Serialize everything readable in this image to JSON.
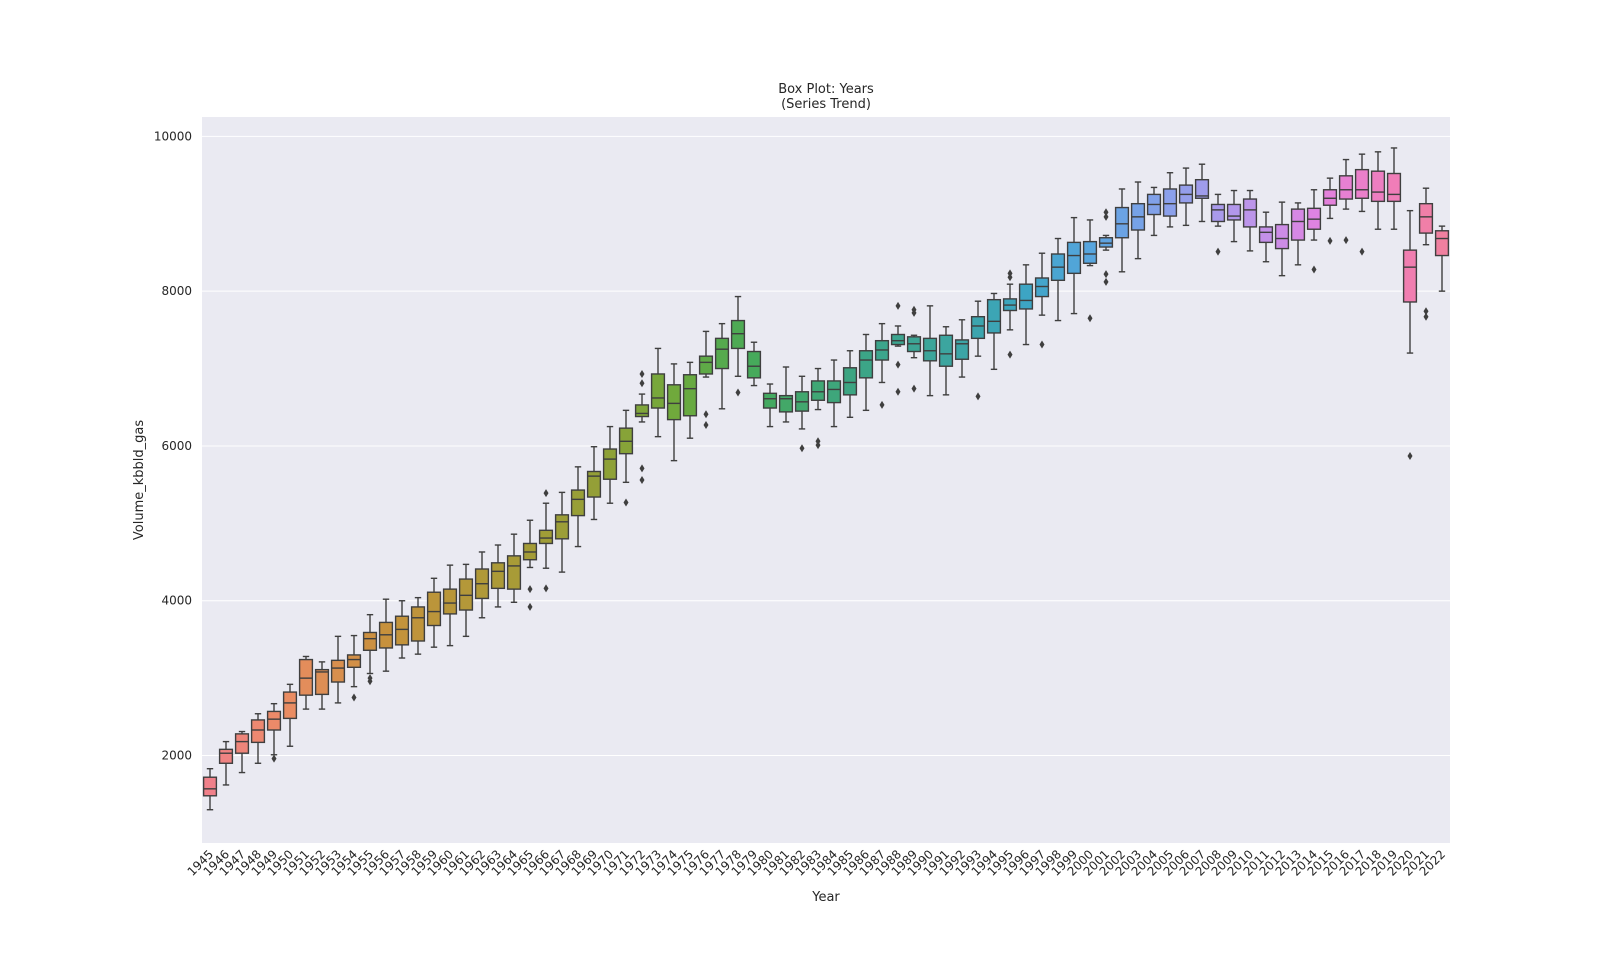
{
  "chart_data": {
    "type": "box",
    "title": "Box Plot: Years",
    "subtitle": "(Series Trend)",
    "xlabel": "Year",
    "ylabel": "Volume_kbbld_gas",
    "ylim": [
      870,
      10250
    ],
    "yticks": [
      2000,
      4000,
      6000,
      8000,
      10000
    ],
    "grid": true,
    "background_color": "#EAEAF2",
    "categories": [
      "1945",
      "1946",
      "1947",
      "1948",
      "1949",
      "1950",
      "1951",
      "1952",
      "1953",
      "1954",
      "1955",
      "1956",
      "1957",
      "1958",
      "1959",
      "1960",
      "1961",
      "1962",
      "1963",
      "1964",
      "1965",
      "1966",
      "1967",
      "1968",
      "1969",
      "1970",
      "1971",
      "1972",
      "1973",
      "1974",
      "1975",
      "1976",
      "1977",
      "1978",
      "1979",
      "1980",
      "1981",
      "1982",
      "1983",
      "1984",
      "1985",
      "1986",
      "1987",
      "1988",
      "1989",
      "1990",
      "1991",
      "1992",
      "1993",
      "1994",
      "1995",
      "1996",
      "1997",
      "1998",
      "1999",
      "2000",
      "2001",
      "2002",
      "2003",
      "2004",
      "2005",
      "2006",
      "2007",
      "2008",
      "2009",
      "2010",
      "2011",
      "2012",
      "2013",
      "2014",
      "2015",
      "2016",
      "2017",
      "2018",
      "2019",
      "2020",
      "2021",
      "2022"
    ],
    "boxes": [
      {
        "year": "1945",
        "lo": 1300,
        "q1": 1480,
        "med": 1570,
        "q3": 1720,
        "hi": 1830,
        "out": []
      },
      {
        "year": "1946",
        "lo": 1620,
        "q1": 1900,
        "med": 2030,
        "q3": 2080,
        "hi": 2180,
        "out": []
      },
      {
        "year": "1947",
        "lo": 1780,
        "q1": 2030,
        "med": 2180,
        "q3": 2280,
        "hi": 2310,
        "out": []
      },
      {
        "year": "1948",
        "lo": 1900,
        "q1": 2170,
        "med": 2330,
        "q3": 2460,
        "hi": 2540,
        "out": []
      },
      {
        "year": "1949",
        "lo": 2010,
        "q1": 2330,
        "med": 2470,
        "q3": 2570,
        "hi": 2670,
        "out": [
          1960
        ]
      },
      {
        "year": "1950",
        "lo": 2120,
        "q1": 2480,
        "med": 2680,
        "q3": 2820,
        "hi": 2920,
        "out": []
      },
      {
        "year": "1951",
        "lo": 2600,
        "q1": 2780,
        "med": 3000,
        "q3": 3240,
        "hi": 3280,
        "out": []
      },
      {
        "year": "1952",
        "lo": 2600,
        "q1": 2790,
        "med": 3080,
        "q3": 3110,
        "hi": 3210,
        "out": []
      },
      {
        "year": "1953",
        "lo": 2680,
        "q1": 2950,
        "med": 3130,
        "q3": 3230,
        "hi": 3540,
        "out": []
      },
      {
        "year": "1954",
        "lo": 2890,
        "q1": 3140,
        "med": 3240,
        "q3": 3300,
        "hi": 3550,
        "out": [
          2750
        ]
      },
      {
        "year": "1955",
        "lo": 3060,
        "q1": 3360,
        "med": 3510,
        "q3": 3590,
        "hi": 3820,
        "out": [
          2960,
          3000
        ]
      },
      {
        "year": "1956",
        "lo": 3090,
        "q1": 3390,
        "med": 3560,
        "q3": 3720,
        "hi": 4020,
        "out": []
      },
      {
        "year": "1957",
        "lo": 3260,
        "q1": 3430,
        "med": 3630,
        "q3": 3800,
        "hi": 4000,
        "out": []
      },
      {
        "year": "1958",
        "lo": 3310,
        "q1": 3480,
        "med": 3780,
        "q3": 3920,
        "hi": 4040,
        "out": []
      },
      {
        "year": "1959",
        "lo": 3400,
        "q1": 3680,
        "med": 3860,
        "q3": 4110,
        "hi": 4290,
        "out": []
      },
      {
        "year": "1960",
        "lo": 3420,
        "q1": 3830,
        "med": 3970,
        "q3": 4150,
        "hi": 4460,
        "out": []
      },
      {
        "year": "1961",
        "lo": 3540,
        "q1": 3880,
        "med": 4070,
        "q3": 4280,
        "hi": 4470,
        "out": []
      },
      {
        "year": "1962",
        "lo": 3780,
        "q1": 4030,
        "med": 4220,
        "q3": 4410,
        "hi": 4630,
        "out": []
      },
      {
        "year": "1963",
        "lo": 3920,
        "q1": 4160,
        "med": 4380,
        "q3": 4490,
        "hi": 4720,
        "out": []
      },
      {
        "year": "1964",
        "lo": 3980,
        "q1": 4150,
        "med": 4450,
        "q3": 4580,
        "hi": 4860,
        "out": []
      },
      {
        "year": "1965",
        "lo": 4430,
        "q1": 4530,
        "med": 4630,
        "q3": 4740,
        "hi": 5040,
        "out": [
          4150,
          3920
        ]
      },
      {
        "year": "1966",
        "lo": 4420,
        "q1": 4740,
        "med": 4810,
        "q3": 4910,
        "hi": 5260,
        "out": [
          5390,
          4160
        ]
      },
      {
        "year": "1967",
        "lo": 4370,
        "q1": 4800,
        "med": 5020,
        "q3": 5110,
        "hi": 5400,
        "out": []
      },
      {
        "year": "1968",
        "lo": 4700,
        "q1": 5100,
        "med": 5310,
        "q3": 5430,
        "hi": 5730,
        "out": []
      },
      {
        "year": "1969",
        "lo": 5050,
        "q1": 5340,
        "med": 5610,
        "q3": 5670,
        "hi": 5990,
        "out": []
      },
      {
        "year": "1970",
        "lo": 5260,
        "q1": 5570,
        "med": 5830,
        "q3": 5960,
        "hi": 6250,
        "out": []
      },
      {
        "year": "1971",
        "lo": 5530,
        "q1": 5900,
        "med": 6060,
        "q3": 6230,
        "hi": 6460,
        "out": [
          5270
        ]
      },
      {
        "year": "1972",
        "lo": 6310,
        "q1": 6380,
        "med": 6420,
        "q3": 6530,
        "hi": 6670,
        "out": [
          6810,
          6930,
          5710,
          5560
        ]
      },
      {
        "year": "1973",
        "lo": 6120,
        "q1": 6490,
        "med": 6620,
        "q3": 6930,
        "hi": 7260,
        "out": []
      },
      {
        "year": "1974",
        "lo": 5810,
        "q1": 6340,
        "med": 6550,
        "q3": 6790,
        "hi": 7060,
        "out": []
      },
      {
        "year": "1975",
        "lo": 6100,
        "q1": 6390,
        "med": 6740,
        "q3": 6920,
        "hi": 7080,
        "out": []
      },
      {
        "year": "1976",
        "lo": 6890,
        "q1": 6930,
        "med": 7080,
        "q3": 7160,
        "hi": 7480,
        "out": [
          6410,
          6270
        ]
      },
      {
        "year": "1977",
        "lo": 6480,
        "q1": 7000,
        "med": 7250,
        "q3": 7390,
        "hi": 7580,
        "out": []
      },
      {
        "year": "1978",
        "lo": 6900,
        "q1": 7260,
        "med": 7450,
        "q3": 7620,
        "hi": 7930,
        "out": [
          6690
        ]
      },
      {
        "year": "1979",
        "lo": 6780,
        "q1": 6880,
        "med": 7030,
        "q3": 7220,
        "hi": 7340,
        "out": []
      },
      {
        "year": "1980",
        "lo": 6250,
        "q1": 6490,
        "med": 6610,
        "q3": 6680,
        "hi": 6800,
        "out": []
      },
      {
        "year": "1981",
        "lo": 6310,
        "q1": 6440,
        "med": 6610,
        "q3": 6650,
        "hi": 7020,
        "out": []
      },
      {
        "year": "1982",
        "lo": 6220,
        "q1": 6450,
        "med": 6570,
        "q3": 6700,
        "hi": 6900,
        "out": [
          5970
        ]
      },
      {
        "year": "1983",
        "lo": 6470,
        "q1": 6590,
        "med": 6700,
        "q3": 6840,
        "hi": 7000,
        "out": [
          6010,
          6060
        ]
      },
      {
        "year": "1984",
        "lo": 6250,
        "q1": 6560,
        "med": 6730,
        "q3": 6840,
        "hi": 7110,
        "out": []
      },
      {
        "year": "1985",
        "lo": 6370,
        "q1": 6660,
        "med": 6820,
        "q3": 7010,
        "hi": 7230,
        "out": []
      },
      {
        "year": "1986",
        "lo": 6460,
        "q1": 6880,
        "med": 7110,
        "q3": 7230,
        "hi": 7440,
        "out": []
      },
      {
        "year": "1987",
        "lo": 6820,
        "q1": 7110,
        "med": 7240,
        "q3": 7360,
        "hi": 7580,
        "out": [
          6530
        ]
      },
      {
        "year": "1988",
        "lo": 7290,
        "q1": 7310,
        "med": 7360,
        "q3": 7440,
        "hi": 7550,
        "out": [
          7810,
          7050,
          6700
        ]
      },
      {
        "year": "1989",
        "lo": 7140,
        "q1": 7220,
        "med": 7320,
        "q3": 7410,
        "hi": 7430,
        "out": [
          7760,
          7720,
          6740
        ]
      },
      {
        "year": "1990",
        "lo": 6650,
        "q1": 7100,
        "med": 7230,
        "q3": 7390,
        "hi": 7810,
        "out": []
      },
      {
        "year": "1991",
        "lo": 6660,
        "q1": 7030,
        "med": 7190,
        "q3": 7430,
        "hi": 7540,
        "out": []
      },
      {
        "year": "1992",
        "lo": 6890,
        "q1": 7120,
        "med": 7320,
        "q3": 7370,
        "hi": 7630,
        "out": []
      },
      {
        "year": "1993",
        "lo": 7160,
        "q1": 7390,
        "med": 7550,
        "q3": 7670,
        "hi": 7870,
        "out": [
          6640
        ]
      },
      {
        "year": "1994",
        "lo": 6990,
        "q1": 7460,
        "med": 7610,
        "q3": 7890,
        "hi": 7970,
        "out": []
      },
      {
        "year": "1995",
        "lo": 7500,
        "q1": 7750,
        "med": 7820,
        "q3": 7900,
        "hi": 8090,
        "out": [
          8180,
          8230,
          7180
        ]
      },
      {
        "year": "1996",
        "lo": 7310,
        "q1": 7770,
        "med": 7880,
        "q3": 8090,
        "hi": 8340,
        "out": []
      },
      {
        "year": "1997",
        "lo": 7690,
        "q1": 7930,
        "med": 8060,
        "q3": 8170,
        "hi": 8490,
        "out": [
          7310
        ]
      },
      {
        "year": "1998",
        "lo": 7620,
        "q1": 8140,
        "med": 8310,
        "q3": 8480,
        "hi": 8680,
        "out": []
      },
      {
        "year": "1999",
        "lo": 7710,
        "q1": 8230,
        "med": 8460,
        "q3": 8630,
        "hi": 8950,
        "out": []
      },
      {
        "year": "2000",
        "lo": 8330,
        "q1": 8360,
        "med": 8480,
        "q3": 8640,
        "hi": 8920,
        "out": [
          7650
        ]
      },
      {
        "year": "2001",
        "lo": 8530,
        "q1": 8570,
        "med": 8620,
        "q3": 8690,
        "hi": 8720,
        "out": [
          8960,
          9020,
          8220,
          8120
        ]
      },
      {
        "year": "2002",
        "lo": 8250,
        "q1": 8690,
        "med": 8870,
        "q3": 9080,
        "hi": 9320,
        "out": []
      },
      {
        "year": "2003",
        "lo": 8420,
        "q1": 8790,
        "med": 8960,
        "q3": 9130,
        "hi": 9410,
        "out": []
      },
      {
        "year": "2004",
        "lo": 8720,
        "q1": 8990,
        "med": 9120,
        "q3": 9250,
        "hi": 9340,
        "out": []
      },
      {
        "year": "2005",
        "lo": 8830,
        "q1": 8970,
        "med": 9130,
        "q3": 9320,
        "hi": 9530,
        "out": []
      },
      {
        "year": "2006",
        "lo": 8850,
        "q1": 9140,
        "med": 9250,
        "q3": 9370,
        "hi": 9590,
        "out": []
      },
      {
        "year": "2007",
        "lo": 8900,
        "q1": 9200,
        "med": 9230,
        "q3": 9440,
        "hi": 9640,
        "out": []
      },
      {
        "year": "2008",
        "lo": 8840,
        "q1": 8900,
        "med": 9050,
        "q3": 9120,
        "hi": 9250,
        "out": [
          8510
        ]
      },
      {
        "year": "2009",
        "lo": 8640,
        "q1": 8920,
        "med": 8970,
        "q3": 9120,
        "hi": 9300,
        "out": []
      },
      {
        "year": "2010",
        "lo": 8520,
        "q1": 8830,
        "med": 9050,
        "q3": 9190,
        "hi": 9300,
        "out": []
      },
      {
        "year": "2011",
        "lo": 8380,
        "q1": 8630,
        "med": 8760,
        "q3": 8830,
        "hi": 9020,
        "out": []
      },
      {
        "year": "2012",
        "lo": 8200,
        "q1": 8550,
        "med": 8680,
        "q3": 8860,
        "hi": 9150,
        "out": []
      },
      {
        "year": "2013",
        "lo": 8340,
        "q1": 8660,
        "med": 8900,
        "q3": 9060,
        "hi": 9140,
        "out": []
      },
      {
        "year": "2014",
        "lo": 8660,
        "q1": 8800,
        "med": 8930,
        "q3": 9070,
        "hi": 9310,
        "out": [
          8280
        ]
      },
      {
        "year": "2015",
        "lo": 8940,
        "q1": 9110,
        "med": 9200,
        "q3": 9310,
        "hi": 9460,
        "out": [
          8650
        ]
      },
      {
        "year": "2016",
        "lo": 9060,
        "q1": 9190,
        "med": 9310,
        "q3": 9490,
        "hi": 9700,
        "out": [
          8660
        ]
      },
      {
        "year": "2017",
        "lo": 9030,
        "q1": 9200,
        "med": 9310,
        "q3": 9570,
        "hi": 9770,
        "out": [
          8510
        ]
      },
      {
        "year": "2018",
        "lo": 8800,
        "q1": 9160,
        "med": 9280,
        "q3": 9550,
        "hi": 9800,
        "out": []
      },
      {
        "year": "2019",
        "lo": 8800,
        "q1": 9160,
        "med": 9250,
        "q3": 9520,
        "hi": 9850,
        "out": []
      },
      {
        "year": "2020",
        "lo": 7200,
        "q1": 7860,
        "med": 8310,
        "q3": 8530,
        "hi": 9040,
        "out": [
          5870
        ]
      },
      {
        "year": "2021",
        "lo": 8600,
        "q1": 8750,
        "med": 8960,
        "q3": 9130,
        "hi": 9330,
        "out": [
          7740,
          7670
        ]
      },
      {
        "year": "2022",
        "lo": 8000,
        "q1": 8460,
        "med": 8680,
        "q3": 8780,
        "hi": 8840,
        "out": []
      }
    ]
  }
}
